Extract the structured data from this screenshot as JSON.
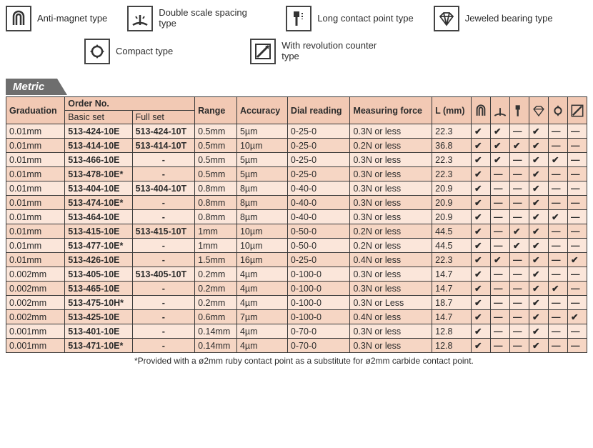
{
  "legend": {
    "anti_magnet": "Anti-magnet type",
    "double_scale": "Double scale spacing type",
    "long_contact": "Long contact point type",
    "jeweled": "Jeweled bearing type",
    "compact": "Compact type",
    "rev_counter": "With revolution counter type"
  },
  "section_title": "Metric",
  "headers": {
    "graduation": "Graduation",
    "order_no": "Order No.",
    "basic_set": "Basic set",
    "full_set": "Full set",
    "range": "Range",
    "accuracy": "Accuracy",
    "dial_reading": "Dial reading",
    "measuring_force": "Measuring force",
    "l_mm": "L (mm)"
  },
  "check": "✔",
  "dash": "—",
  "rows": [
    {
      "grad": "0.01mm",
      "basic": "513-424-10E",
      "full": "513-424-10T",
      "range": "0.5mm",
      "acc": "5µm",
      "dial": "0-25-0",
      "force": "0.3N or less",
      "l": "22.3",
      "f": [
        1,
        1,
        0,
        1,
        0,
        0
      ]
    },
    {
      "grad": "0.01mm",
      "basic": "513-414-10E",
      "full": "513-414-10T",
      "range": "0.5mm",
      "acc": "10µm",
      "dial": "0-25-0",
      "force": "0.2N or less",
      "l": "36.8",
      "f": [
        1,
        1,
        1,
        1,
        0,
        0
      ]
    },
    {
      "grad": "0.01mm",
      "basic": "513-466-10E",
      "full": "-",
      "range": "0.5mm",
      "acc": "5µm",
      "dial": "0-25-0",
      "force": "0.3N or less",
      "l": "22.3",
      "f": [
        1,
        1,
        0,
        1,
        1,
        0
      ]
    },
    {
      "grad": "0.01mm",
      "basic": "513-478-10E*",
      "full": "-",
      "range": "0.5mm",
      "acc": "5µm",
      "dial": "0-25-0",
      "force": "0.3N or less",
      "l": "22.3",
      "f": [
        1,
        0,
        0,
        1,
        0,
        0
      ]
    },
    {
      "grad": "0.01mm",
      "basic": "513-404-10E",
      "full": "513-404-10T",
      "range": "0.8mm",
      "acc": "8µm",
      "dial": "0-40-0",
      "force": "0.3N or less",
      "l": "20.9",
      "f": [
        1,
        0,
        0,
        1,
        0,
        0
      ]
    },
    {
      "grad": "0.01mm",
      "basic": "513-474-10E*",
      "full": "-",
      "range": "0.8mm",
      "acc": "8µm",
      "dial": "0-40-0",
      "force": "0.3N or less",
      "l": "20.9",
      "f": [
        1,
        0,
        0,
        1,
        0,
        0
      ]
    },
    {
      "grad": "0.01mm",
      "basic": "513-464-10E",
      "full": "-",
      "range": "0.8mm",
      "acc": "8µm",
      "dial": "0-40-0",
      "force": "0.3N or less",
      "l": "20.9",
      "f": [
        1,
        0,
        0,
        1,
        1,
        0
      ]
    },
    {
      "grad": "0.01mm",
      "basic": "513-415-10E",
      "full": "513-415-10T",
      "range": "1mm",
      "acc": "10µm",
      "dial": "0-50-0",
      "force": "0.2N or less",
      "l": "44.5",
      "f": [
        1,
        0,
        1,
        1,
        0,
        0
      ]
    },
    {
      "grad": "0.01mm",
      "basic": "513-477-10E*",
      "full": "-",
      "range": "1mm",
      "acc": "10µm",
      "dial": "0-50-0",
      "force": "0.2N or less",
      "l": "44.5",
      "f": [
        1,
        0,
        1,
        1,
        0,
        0
      ]
    },
    {
      "grad": "0.01mm",
      "basic": "513-426-10E",
      "full": "-",
      "range": "1.5mm",
      "acc": "16µm",
      "dial": "0-25-0",
      "force": "0.4N or less",
      "l": "22.3",
      "f": [
        1,
        1,
        0,
        1,
        0,
        1
      ]
    },
    {
      "grad": "0.002mm",
      "basic": "513-405-10E",
      "full": "513-405-10T",
      "range": "0.2mm",
      "acc": "4µm",
      "dial": "0-100-0",
      "force": "0.3N or less",
      "l": "14.7",
      "f": [
        1,
        0,
        0,
        1,
        0,
        0
      ]
    },
    {
      "grad": "0.002mm",
      "basic": "513-465-10E",
      "full": "-",
      "range": "0.2mm",
      "acc": "4µm",
      "dial": "0-100-0",
      "force": "0.3N or less",
      "l": "14.7",
      "f": [
        1,
        0,
        0,
        1,
        1,
        0
      ]
    },
    {
      "grad": "0.002mm",
      "basic": "513-475-10H*",
      "full": "-",
      "range": "0.2mm",
      "acc": "4µm",
      "dial": "0-100-0",
      "force": "0.3N or Less",
      "l": "18.7",
      "f": [
        1,
        0,
        0,
        1,
        0,
        0
      ]
    },
    {
      "grad": "0.002mm",
      "basic": "513-425-10E",
      "full": "-",
      "range": "0.6mm",
      "acc": "7µm",
      "dial": "0-100-0",
      "force": "0.4N or less",
      "l": "14.7",
      "f": [
        1,
        0,
        0,
        1,
        0,
        1
      ]
    },
    {
      "grad": "0.001mm",
      "basic": "513-401-10E",
      "full": "-",
      "range": "0.14mm",
      "acc": "4µm",
      "dial": "0-70-0",
      "force": "0.3N or less",
      "l": "12.8",
      "f": [
        1,
        0,
        0,
        1,
        0,
        0
      ]
    },
    {
      "grad": "0.001mm",
      "basic": "513-471-10E*",
      "full": "-",
      "range": "0.14mm",
      "acc": "4µm",
      "dial": "0-70-0",
      "force": "0.3N or less",
      "l": "12.8",
      "f": [
        1,
        0,
        0,
        1,
        0,
        0
      ]
    }
  ],
  "footnote": "*Provided with a ø2mm ruby contact point as a substitute for ø2mm carbide contact point.",
  "colors": {
    "header_bg": "#f2c9b4",
    "row_odd": "#fbe6da",
    "row_even": "#f6d6c4",
    "tab_bg": "#6e6e6e"
  }
}
